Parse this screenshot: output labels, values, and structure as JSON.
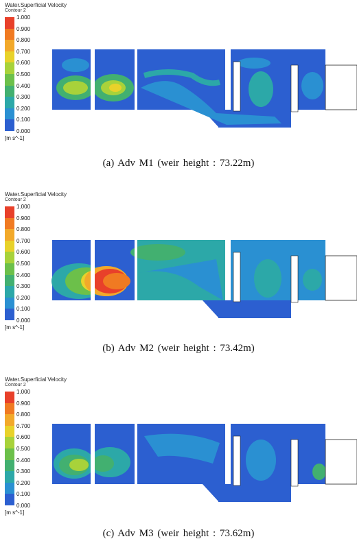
{
  "legend": {
    "title": "Water.Superficial Velocity",
    "subtitle": "Contour 2",
    "unit": "[m s^-1]",
    "levels": [
      "1.000",
      "0.900",
      "0.800",
      "0.700",
      "0.600",
      "0.500",
      "0.400",
      "0.300",
      "0.200",
      "0.100",
      "0.000"
    ],
    "colors": [
      "#e8402a",
      "#f07a22",
      "#f2a92a",
      "#e8d22a",
      "#a8d23a",
      "#6cc04a",
      "#42b070",
      "#2ca8a8",
      "#2a90d2",
      "#2c5fd0"
    ]
  },
  "panels": [
    {
      "caption": "(a)  Adv  M1  (weir  height  :  73.22m)"
    },
    {
      "caption": "(b)  Adv  M2  (weir  height  :  73.42m)"
    },
    {
      "caption": "(c)  Adv  M3  (weir  height  :  73.62m)"
    }
  ]
}
